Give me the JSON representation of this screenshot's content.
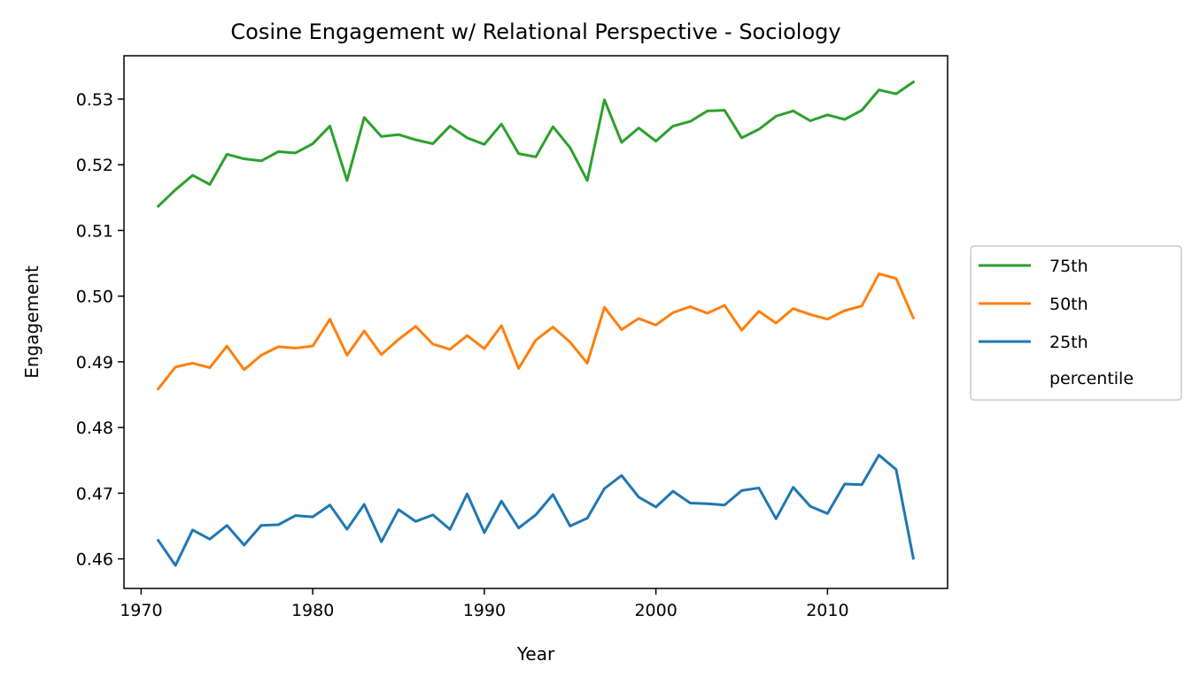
{
  "chart_data": {
    "type": "line",
    "title": "Cosine Engagement w/ Relational Perspective - Sociology",
    "xlabel": "Year",
    "ylabel": "Engagement",
    "xlim": [
      1969.0,
      2017.0
    ],
    "ylim": [
      0.4555,
      0.5366
    ],
    "xticks": [
      1970,
      1980,
      1990,
      2000,
      2010
    ],
    "yticks": [
      0.46,
      0.47,
      0.48,
      0.49,
      0.5,
      0.51,
      0.52,
      0.53
    ],
    "ytick_labels": [
      "0.46",
      "0.47",
      "0.48",
      "0.49",
      "0.50",
      "0.51",
      "0.52",
      "0.53"
    ],
    "grid": false,
    "legend": {
      "placement": "outside-right",
      "entries": [
        "75th",
        "50th",
        "25th"
      ],
      "footer": "percentile"
    },
    "x": [
      1971,
      1972,
      1973,
      1974,
      1975,
      1976,
      1977,
      1978,
      1979,
      1980,
      1981,
      1982,
      1983,
      1984,
      1985,
      1986,
      1987,
      1988,
      1989,
      1990,
      1991,
      1992,
      1993,
      1994,
      1995,
      1996,
      1997,
      1998,
      1999,
      2000,
      2001,
      2002,
      2003,
      2004,
      2005,
      2006,
      2007,
      2008,
      2009,
      2010,
      2011,
      2012,
      2013,
      2014,
      2015
    ],
    "series": [
      {
        "name": "75th",
        "color": "#2ca02c",
        "values": [
          0.5137,
          0.5162,
          0.5184,
          0.517,
          0.5216,
          0.5209,
          0.5206,
          0.522,
          0.5218,
          0.5232,
          0.5259,
          0.5176,
          0.5272,
          0.5243,
          0.5246,
          0.5238,
          0.5232,
          0.5259,
          0.5241,
          0.5231,
          0.5262,
          0.5217,
          0.5212,
          0.5258,
          0.5226,
          0.5176,
          0.5299,
          0.5234,
          0.5256,
          0.5236,
          0.5259,
          0.5266,
          0.5282,
          0.5283,
          0.5241,
          0.5254,
          0.5274,
          0.5282,
          0.5267,
          0.5276,
          0.5269,
          0.5283,
          0.5314,
          0.5308,
          0.5326
        ]
      },
      {
        "name": "50th",
        "color": "#ff7f0e",
        "values": [
          0.4859,
          0.4892,
          0.4898,
          0.4891,
          0.4924,
          0.4888,
          0.491,
          0.4923,
          0.4921,
          0.4924,
          0.4965,
          0.491,
          0.4947,
          0.4911,
          0.4934,
          0.4954,
          0.4927,
          0.4919,
          0.494,
          0.492,
          0.4955,
          0.489,
          0.4933,
          0.4953,
          0.493,
          0.4898,
          0.4983,
          0.4949,
          0.4966,
          0.4956,
          0.4975,
          0.4984,
          0.4974,
          0.4986,
          0.4948,
          0.4977,
          0.4959,
          0.4981,
          0.4972,
          0.4965,
          0.4978,
          0.4985,
          0.5034,
          0.5027,
          0.4967
        ]
      },
      {
        "name": "25th",
        "color": "#1f77b4",
        "values": [
          0.4628,
          0.459,
          0.4644,
          0.463,
          0.4651,
          0.4621,
          0.4651,
          0.4652,
          0.4666,
          0.4664,
          0.4682,
          0.4645,
          0.4683,
          0.4626,
          0.4675,
          0.4657,
          0.4667,
          0.4645,
          0.4699,
          0.464,
          0.4688,
          0.4647,
          0.4667,
          0.4698,
          0.465,
          0.4662,
          0.4707,
          0.4727,
          0.4694,
          0.4679,
          0.4703,
          0.4685,
          0.4684,
          0.4682,
          0.4704,
          0.4708,
          0.4661,
          0.4709,
          0.468,
          0.4669,
          0.4714,
          0.4713,
          0.4758,
          0.4736,
          0.4601
        ]
      }
    ]
  }
}
